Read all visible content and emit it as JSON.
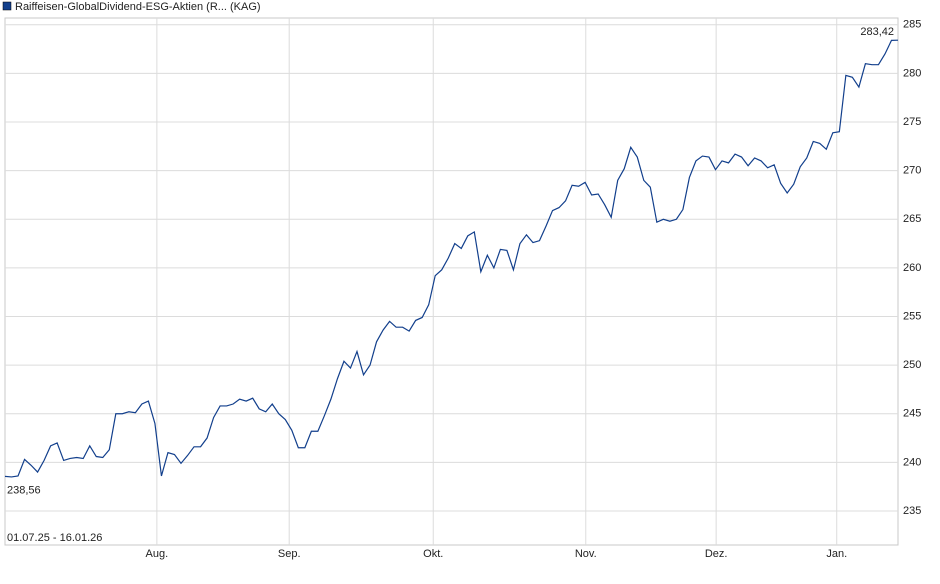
{
  "chart_data": {
    "type": "line",
    "series": [
      {
        "name": "Raiffeisen-GlobalDividend-ESG-Aktien (R...  (KAG)",
        "color": "#123f8c",
        "values": [
          238.56,
          238.5,
          238.6,
          240.3,
          239.7,
          239.0,
          240.2,
          241.7,
          242.0,
          240.2,
          240.4,
          240.5,
          240.4,
          241.7,
          240.6,
          240.5,
          241.3,
          245.0,
          245.0,
          245.2,
          245.1,
          246.0,
          246.3,
          244.0,
          238.6,
          241.0,
          240.8,
          239.9,
          240.7,
          241.6,
          241.6,
          242.5,
          244.6,
          245.8,
          245.8,
          246.0,
          246.5,
          246.3,
          246.6,
          245.5,
          245.2,
          246.0,
          245.0,
          244.4,
          243.3,
          241.5,
          241.5,
          243.2,
          243.2,
          244.8,
          246.5,
          248.6,
          250.4,
          249.7,
          251.4,
          249.0,
          250.0,
          252.4,
          253.6,
          254.5,
          253.9,
          253.9,
          253.5,
          254.6,
          254.9,
          256.2,
          259.2,
          259.8,
          261.0,
          262.5,
          262.0,
          263.3,
          263.7,
          259.6,
          261.3,
          260.0,
          261.9,
          261.8,
          259.8,
          262.5,
          263.4,
          262.6,
          262.8,
          264.3,
          265.9,
          266.2,
          266.9,
          268.5,
          268.4,
          268.8,
          267.5,
          267.6,
          266.5,
          265.2,
          269.0,
          270.2,
          272.4,
          271.4,
          269.0,
          268.3,
          264.7,
          265.0,
          264.8,
          265.0,
          266.0,
          269.3,
          271.0,
          271.5,
          271.4,
          270.1,
          271.0,
          270.8,
          271.7,
          271.4,
          270.5,
          271.3,
          271.0,
          270.3,
          270.6,
          268.7,
          267.7,
          268.6,
          270.4,
          271.3,
          273.0,
          272.8,
          272.2,
          273.9,
          274.0,
          279.8,
          279.6,
          278.6,
          281.0,
          280.9,
          280.9,
          282.0,
          283.4,
          283.42
        ]
      }
    ],
    "xlim": [
      0,
      137
    ],
    "xticks": [
      {
        "value": 23.3,
        "label": "Aug."
      },
      {
        "value": 43.6,
        "label": "Sep."
      },
      {
        "value": 65.7,
        "label": "Okt."
      },
      {
        "value": 89.1,
        "label": "Nov."
      },
      {
        "value": 109.1,
        "label": "Dez."
      },
      {
        "value": 127.6,
        "label": "Jan."
      }
    ],
    "ylim": [
      231.5,
      285.7
    ],
    "yticks": [
      235,
      240,
      245,
      250,
      255,
      260,
      265,
      270,
      275,
      280,
      285
    ],
    "grid": true,
    "min_label": "238,56",
    "max_label": "283,42",
    "range_label": "01.07.25 - 16.01.26"
  }
}
